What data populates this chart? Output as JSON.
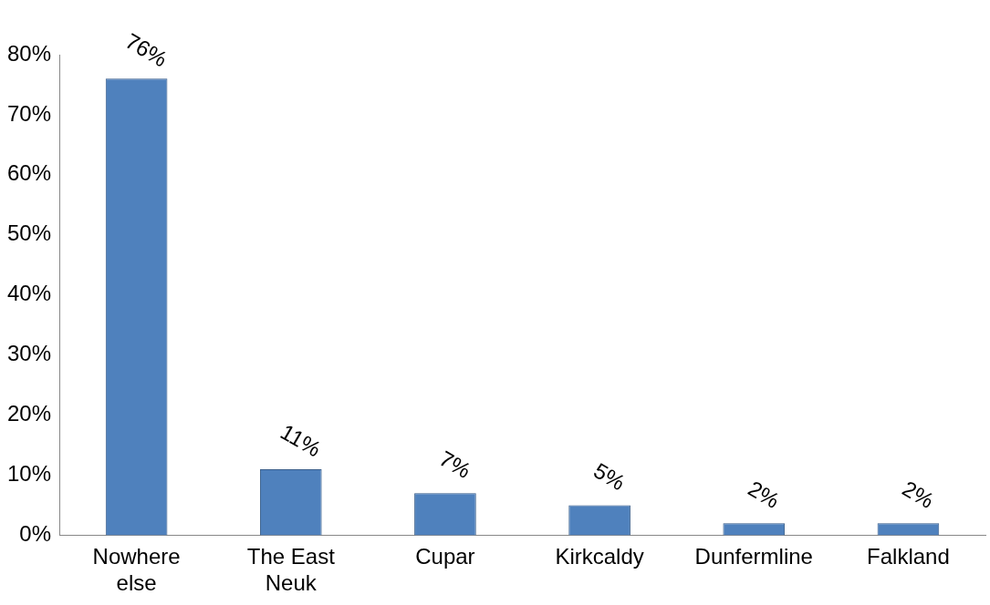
{
  "chart_data": {
    "type": "bar",
    "categories": [
      "Nowhere else",
      "The East Neuk",
      "Cupar",
      "Kirkcaldy",
      "Dunfermline",
      "Falkland"
    ],
    "values": [
      76,
      11,
      7,
      5,
      2,
      2
    ],
    "color": "#4f81bd",
    "value_labels": [
      "76%",
      "11%",
      "7%",
      "5%",
      "2%",
      "2%"
    ],
    "ylim": [
      0,
      80
    ],
    "yticks": [
      {
        "value": 0,
        "label": "0%"
      },
      {
        "value": 10,
        "label": "10%"
      },
      {
        "value": 20,
        "label": "20%"
      },
      {
        "value": 30,
        "label": "30%"
      },
      {
        "value": 40,
        "label": "40%"
      },
      {
        "value": 50,
        "label": "50%"
      },
      {
        "value": 60,
        "label": "60%"
      },
      {
        "value": 70,
        "label": "70%"
      },
      {
        "value": 80,
        "label": "80%"
      }
    ],
    "grid": false,
    "legend": false
  }
}
